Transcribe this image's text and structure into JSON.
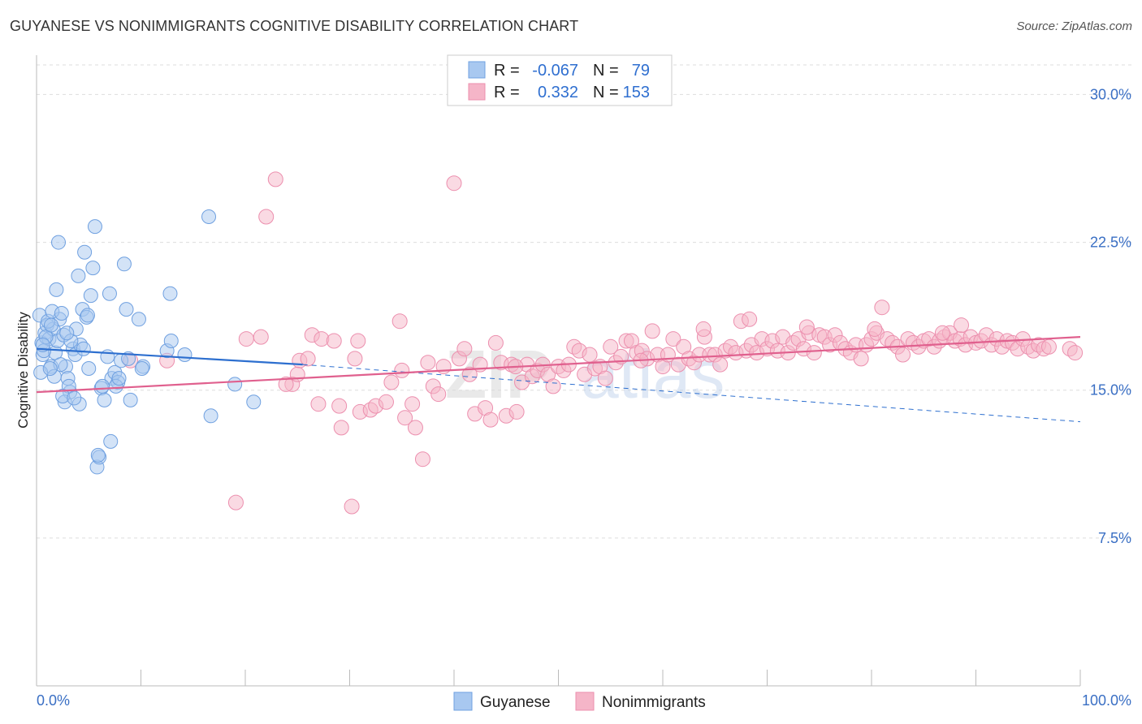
{
  "title": "GUYANESE VS NONIMMIGRANTS COGNITIVE DISABILITY CORRELATION CHART",
  "source": "Source: ZipAtlas.com",
  "watermark": {
    "zip": "ZIP",
    "atlas": "atlas"
  },
  "colors": {
    "guyanese_fill": "#a8c8f0",
    "guyanese_stroke": "#6fa0e0",
    "guyanese_line": "#2d6fcf",
    "nonimm_fill": "#f5b5c8",
    "nonimm_stroke": "#ec8fae",
    "nonimm_line": "#e0608e",
    "tick_label": "#3a6fc4",
    "grid": "#dddddd"
  },
  "legend": {
    "rows": [
      {
        "r_label": "R =",
        "r_value": "-0.067",
        "n_label": "N =",
        "n_value": "79"
      },
      {
        "r_label": "R =",
        "r_value": "0.332",
        "n_label": "N =",
        "n_value": "153"
      }
    ]
  },
  "chart_data": {
    "type": "scatter",
    "title": "GUYANESE VS NONIMMIGRANTS COGNITIVE DISABILITY CORRELATION CHART",
    "xlabel": "",
    "ylabel": "Cognitive Disability",
    "xlim": [
      0,
      100
    ],
    "ylim": [
      0,
      31.5
    ],
    "x_tick_labels": [
      "0.0%",
      "100.0%"
    ],
    "y_ticks": [
      7.5,
      15.0,
      22.5,
      30.0
    ],
    "y_tick_labels": [
      "7.5%",
      "15.0%",
      "22.5%",
      "30.0%"
    ],
    "grid": true,
    "legend_position": "top-center",
    "series": [
      {
        "name": "Guyanese",
        "r": -0.067,
        "n": 79,
        "trend": {
          "x_start": 0,
          "y_start": 17.1,
          "x_solid_end": 25.5,
          "y_solid_end": 16.3,
          "x_end": 100,
          "y_end": 13.4
        },
        "points": [
          [
            0.3,
            18.8
          ],
          [
            0.5,
            17.4
          ],
          [
            0.6,
            16.8
          ],
          [
            0.8,
            17.9
          ],
          [
            1.0,
            18.3
          ],
          [
            1.2,
            17.6
          ],
          [
            1.4,
            16.2
          ],
          [
            1.6,
            18.1
          ],
          [
            1.8,
            16.9
          ],
          [
            2.0,
            17.5
          ],
          [
            2.2,
            18.6
          ],
          [
            0.4,
            15.9
          ],
          [
            0.7,
            17.0
          ],
          [
            1.1,
            18.5
          ],
          [
            1.5,
            19.0
          ],
          [
            1.9,
            20.1
          ],
          [
            2.1,
            22.5
          ],
          [
            2.4,
            18.9
          ],
          [
            2.6,
            17.8
          ],
          [
            2.8,
            16.2
          ],
          [
            3.0,
            15.6
          ],
          [
            3.2,
            14.9
          ],
          [
            3.5,
            17.1
          ],
          [
            3.7,
            16.8
          ],
          [
            4.0,
            20.8
          ],
          [
            4.2,
            17.3
          ],
          [
            4.4,
            19.1
          ],
          [
            4.6,
            22.0
          ],
          [
            4.8,
            18.7
          ],
          [
            5.0,
            16.1
          ],
          [
            5.2,
            19.8
          ],
          [
            5.4,
            21.2
          ],
          [
            5.6,
            23.3
          ],
          [
            5.8,
            11.1
          ],
          [
            6.0,
            11.6
          ],
          [
            6.2,
            15.1
          ],
          [
            6.5,
            14.5
          ],
          [
            6.8,
            16.7
          ],
          [
            7.0,
            19.9
          ],
          [
            7.2,
            15.6
          ],
          [
            7.5,
            15.9
          ],
          [
            7.8,
            15.4
          ],
          [
            8.1,
            16.5
          ],
          [
            8.4,
            21.4
          ],
          [
            8.6,
            19.1
          ],
          [
            8.8,
            16.6
          ],
          [
            9.0,
            14.5
          ],
          [
            2.3,
            16.3
          ],
          [
            3.3,
            17.5
          ],
          [
            1.7,
            15.7
          ],
          [
            2.7,
            14.4
          ],
          [
            3.8,
            18.1
          ],
          [
            5.9,
            11.7
          ],
          [
            7.1,
            12.4
          ],
          [
            7.6,
            15.2
          ],
          [
            4.5,
            17.1
          ],
          [
            3.1,
            15.2
          ],
          [
            4.1,
            14.3
          ],
          [
            6.3,
            15.2
          ],
          [
            1.3,
            16.1
          ],
          [
            0.9,
            17.7
          ],
          [
            2.5,
            14.7
          ],
          [
            3.6,
            14.6
          ],
          [
            4.9,
            18.8
          ],
          [
            7.9,
            15.6
          ],
          [
            9.8,
            18.6
          ],
          [
            10.2,
            16.2
          ],
          [
            12.5,
            17.0
          ],
          [
            12.8,
            19.9
          ],
          [
            14.2,
            16.8
          ],
          [
            12.9,
            17.5
          ],
          [
            16.5,
            23.8
          ],
          [
            16.7,
            13.7
          ],
          [
            19.0,
            15.3
          ],
          [
            20.8,
            14.4
          ],
          [
            10.1,
            16.1
          ],
          [
            2.9,
            17.9
          ],
          [
            1.4,
            18.3
          ],
          [
            0.6,
            17.3
          ]
        ]
      },
      {
        "name": "Nonimmigrants",
        "r": 0.332,
        "n": 153,
        "trend": {
          "x_start": 0,
          "y_start": 14.9,
          "x_end": 100,
          "y_end": 17.7
        },
        "points": [
          [
            9.0,
            16.5
          ],
          [
            12.5,
            16.5
          ],
          [
            19.1,
            9.3
          ],
          [
            21.5,
            17.7
          ],
          [
            22.0,
            23.8
          ],
          [
            22.9,
            25.7
          ],
          [
            24.5,
            15.3
          ],
          [
            25.2,
            16.5
          ],
          [
            25.0,
            15.8
          ],
          [
            26.0,
            16.6
          ],
          [
            26.4,
            17.8
          ],
          [
            27.0,
            14.3
          ],
          [
            27.3,
            17.6
          ],
          [
            28.5,
            17.5
          ],
          [
            29.0,
            14.2
          ],
          [
            29.2,
            13.1
          ],
          [
            30.2,
            9.1
          ],
          [
            30.5,
            16.6
          ],
          [
            31.0,
            13.9
          ],
          [
            32.0,
            14.0
          ],
          [
            32.5,
            14.2
          ],
          [
            33.5,
            14.4
          ],
          [
            34.0,
            15.4
          ],
          [
            35.0,
            16.0
          ],
          [
            35.3,
            13.6
          ],
          [
            36.0,
            14.3
          ],
          [
            36.3,
            13.1
          ],
          [
            37.0,
            11.5
          ],
          [
            37.5,
            16.4
          ],
          [
            38.0,
            15.2
          ],
          [
            38.5,
            14.8
          ],
          [
            39.0,
            16.2
          ],
          [
            40.0,
            25.5
          ],
          [
            40.5,
            16.6
          ],
          [
            41.0,
            17.1
          ],
          [
            41.5,
            15.8
          ],
          [
            42.0,
            13.8
          ],
          [
            42.5,
            16.3
          ],
          [
            43.0,
            14.1
          ],
          [
            43.5,
            13.5
          ],
          [
            44.0,
            17.4
          ],
          [
            44.5,
            16.4
          ],
          [
            45.0,
            13.7
          ],
          [
            45.5,
            16.3
          ],
          [
            46.0,
            13.9
          ],
          [
            46.5,
            15.4
          ],
          [
            47.0,
            16.3
          ],
          [
            47.5,
            15.7
          ],
          [
            48.0,
            16.0
          ],
          [
            48.5,
            16.3
          ],
          [
            49.0,
            15.8
          ],
          [
            49.5,
            15.2
          ],
          [
            50.0,
            16.2
          ],
          [
            50.5,
            16.0
          ],
          [
            51.0,
            16.3
          ],
          [
            51.5,
            17.2
          ],
          [
            52.0,
            17.0
          ],
          [
            52.5,
            15.8
          ],
          [
            53.0,
            16.8
          ],
          [
            53.5,
            16.1
          ],
          [
            54.0,
            16.2
          ],
          [
            54.5,
            15.6
          ],
          [
            55.0,
            17.2
          ],
          [
            55.5,
            16.4
          ],
          [
            56.0,
            16.7
          ],
          [
            56.5,
            17.5
          ],
          [
            57.0,
            17.5
          ],
          [
            57.5,
            16.9
          ],
          [
            58.0,
            17.0
          ],
          [
            58.5,
            16.6
          ],
          [
            59.0,
            18.0
          ],
          [
            59.5,
            16.8
          ],
          [
            60.0,
            16.2
          ],
          [
            60.5,
            16.8
          ],
          [
            61.0,
            17.6
          ],
          [
            61.5,
            16.3
          ],
          [
            62.0,
            17.2
          ],
          [
            62.5,
            16.6
          ],
          [
            63.0,
            16.4
          ],
          [
            63.5,
            16.8
          ],
          [
            64.0,
            17.7
          ],
          [
            64.5,
            16.8
          ],
          [
            65.0,
            16.8
          ],
          [
            65.5,
            16.3
          ],
          [
            66.0,
            17.0
          ],
          [
            66.5,
            17.2
          ],
          [
            67.0,
            16.9
          ],
          [
            67.5,
            18.5
          ],
          [
            68.0,
            17.0
          ],
          [
            68.5,
            17.3
          ],
          [
            69.0,
            16.9
          ],
          [
            69.5,
            17.6
          ],
          [
            70.0,
            17.1
          ],
          [
            70.5,
            17.5
          ],
          [
            71.0,
            17.0
          ],
          [
            71.5,
            17.7
          ],
          [
            72.0,
            16.9
          ],
          [
            72.5,
            17.4
          ],
          [
            73.0,
            17.6
          ],
          [
            73.5,
            17.1
          ],
          [
            74.0,
            17.9
          ],
          [
            74.5,
            16.9
          ],
          [
            75.0,
            17.8
          ],
          [
            75.5,
            17.7
          ],
          [
            76.0,
            17.3
          ],
          [
            76.5,
            17.8
          ],
          [
            77.0,
            17.4
          ],
          [
            77.5,
            17.1
          ],
          [
            78.0,
            16.9
          ],
          [
            78.5,
            17.3
          ],
          [
            79.0,
            16.6
          ],
          [
            79.5,
            17.3
          ],
          [
            80.0,
            17.6
          ],
          [
            80.5,
            17.9
          ],
          [
            81.0,
            19.2
          ],
          [
            81.5,
            17.6
          ],
          [
            82.0,
            17.4
          ],
          [
            82.5,
            17.2
          ],
          [
            83.0,
            16.8
          ],
          [
            83.5,
            17.6
          ],
          [
            84.0,
            17.4
          ],
          [
            84.5,
            17.2
          ],
          [
            85.0,
            17.5
          ],
          [
            85.5,
            17.6
          ],
          [
            86.0,
            17.2
          ],
          [
            86.5,
            17.5
          ],
          [
            87.0,
            17.7
          ],
          [
            87.5,
            17.9
          ],
          [
            88.0,
            17.5
          ],
          [
            88.5,
            17.6
          ],
          [
            89.0,
            17.3
          ],
          [
            89.5,
            17.7
          ],
          [
            90.0,
            17.4
          ],
          [
            90.5,
            17.5
          ],
          [
            91.0,
            17.8
          ],
          [
            91.5,
            17.3
          ],
          [
            92.0,
            17.6
          ],
          [
            92.5,
            17.2
          ],
          [
            93.0,
            17.5
          ],
          [
            93.5,
            17.4
          ],
          [
            94.0,
            17.1
          ],
          [
            94.5,
            17.6
          ],
          [
            95.0,
            17.2
          ],
          [
            95.5,
            17.0
          ],
          [
            96.0,
            17.3
          ],
          [
            96.5,
            17.1
          ],
          [
            97.0,
            17.2
          ],
          [
            99.0,
            17.1
          ],
          [
            99.5,
            16.9
          ],
          [
            73.8,
            18.2
          ],
          [
            80.3,
            18.1
          ],
          [
            86.8,
            17.9
          ],
          [
            88.6,
            18.3
          ],
          [
            23.9,
            15.3
          ],
          [
            34.8,
            18.5
          ],
          [
            20.1,
            17.6
          ],
          [
            30.8,
            17.5
          ],
          [
            45.9,
            16.2
          ],
          [
            57.9,
            16.5
          ],
          [
            63.9,
            18.1
          ],
          [
            68.3,
            18.6
          ]
        ]
      }
    ]
  },
  "bottom_legend": [
    "Guyanese",
    "Nonimmigrants"
  ]
}
